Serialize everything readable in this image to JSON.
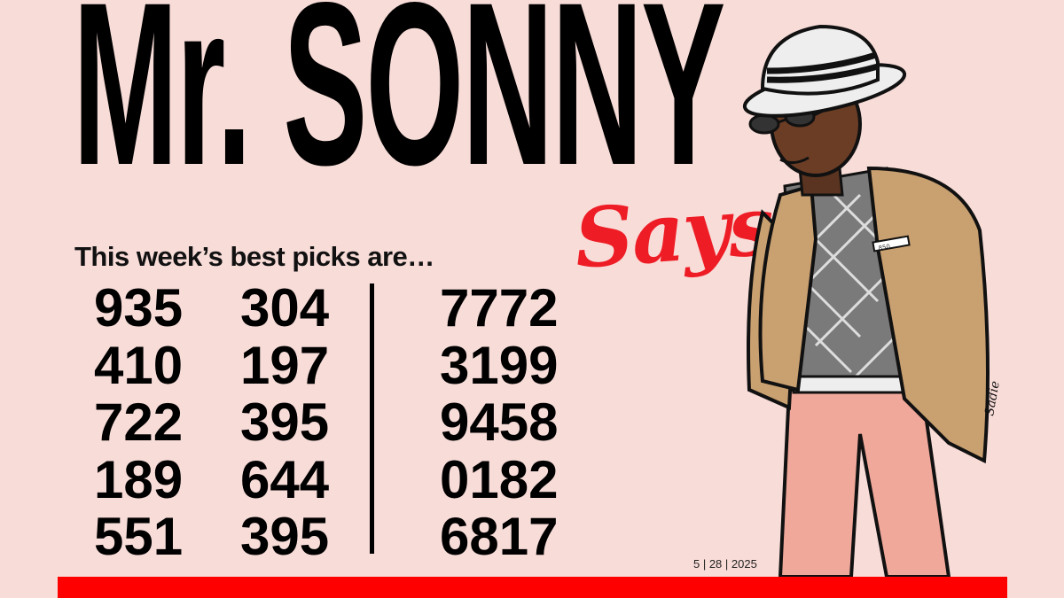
{
  "header": {
    "title": "Mr. SONNY",
    "script_word": "Says!"
  },
  "subtitle": "This week’s best picks are…",
  "picks": {
    "column1": [
      "935",
      "410",
      "722",
      "189",
      "551"
    ],
    "column2": [
      "304",
      "197",
      "395",
      "644",
      "395"
    ],
    "column3": [
      "7772",
      "3199",
      "9458",
      "0182",
      "6817"
    ]
  },
  "date": "5 | 28 | 2025",
  "illustration": {
    "badge_text": "850",
    "signature": "Sadie"
  },
  "colors": {
    "background": "#f8dcd8",
    "accent_red": "#ff0000",
    "script_red": "#ee1c25",
    "text": "#000000"
  }
}
